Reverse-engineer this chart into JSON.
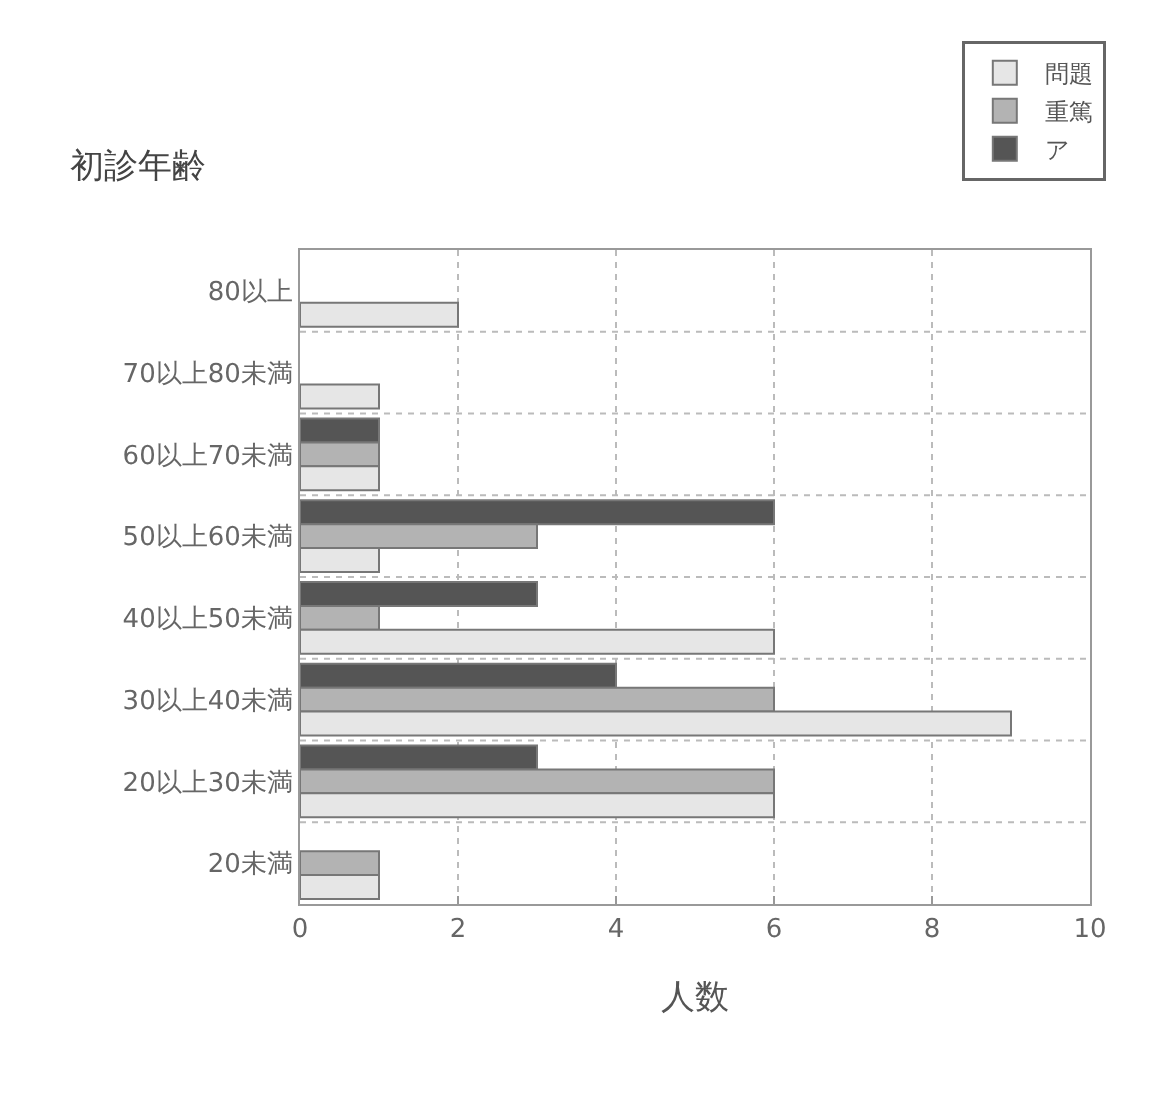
{
  "chart_data": {
    "type": "bar",
    "orientation": "horizontal",
    "title": "初診年齢",
    "xlabel": "人数",
    "categories": [
      "80以上",
      "70以上80未満",
      "60以上70未満",
      "50以上60未満",
      "40以上50未満",
      "30以上40未満",
      "20以上30未満",
      "20未満"
    ],
    "series": [
      {
        "name": "ア",
        "color": "#555555",
        "values": [
          null,
          null,
          1,
          6,
          3,
          4,
          3,
          null
        ]
      },
      {
        "name": "重篤",
        "color": "#b3b3b3",
        "values": [
          null,
          null,
          1,
          3,
          1,
          6,
          6,
          1
        ]
      },
      {
        "name": "問題",
        "color": "#e6e6e6",
        "values": [
          2,
          1,
          1,
          1,
          6,
          9,
          6,
          1
        ]
      }
    ],
    "xlim": [
      0,
      10
    ],
    "xticks": [
      0,
      2,
      4,
      6,
      8,
      10
    ],
    "grid": true,
    "legend": "top right"
  }
}
